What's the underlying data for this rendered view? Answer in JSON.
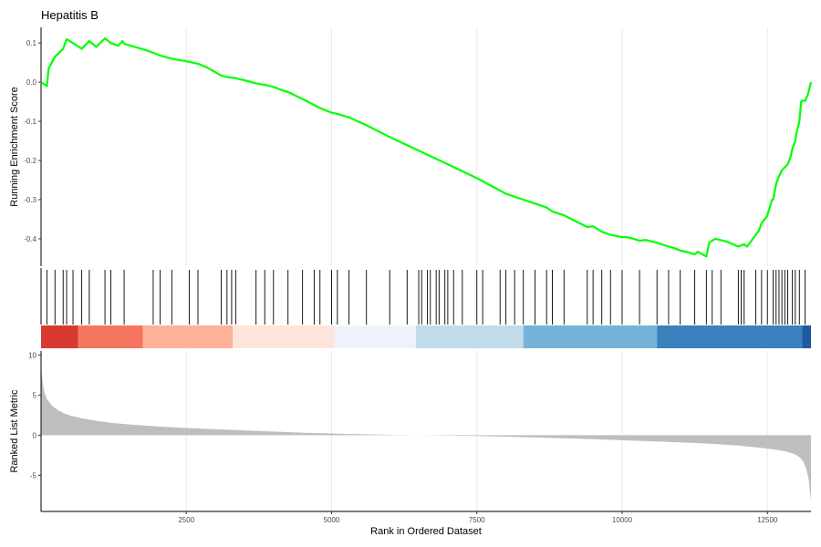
{
  "chart_data": {
    "type": "line",
    "title": "Hepatitis B",
    "xlabel": "Rank in Ordered Dataset",
    "xlim": [
      0,
      13250
    ],
    "x_ticks": [
      2500,
      5000,
      7500,
      10000,
      12500
    ],
    "panels": [
      {
        "name": "running-enrichment",
        "ylabel": "Running Enrichment Score",
        "ylim": [
          -0.47,
          0.14
        ],
        "y_ticks": [
          0.1,
          0.0,
          -0.1,
          -0.2,
          -0.3,
          -0.4
        ],
        "y_tick_labels": [
          "0.1",
          "0.0",
          "-0.1",
          "-0.2",
          "-0.3",
          "-0.4"
        ],
        "line_color": "#00ff00",
        "series": [
          {
            "x": [
              0,
              100,
              130,
              240,
              380,
              440,
              550,
              700,
              830,
              950,
              1100,
              1200,
              1330,
              1400,
              1430,
              1500,
              1800,
              1930,
              2050,
              2250,
              2550,
              2700,
              2850,
              3100,
              3200,
              3280,
              3350,
              3500,
              3700,
              3800,
              3850,
              4000,
              4100,
              4250,
              4500,
              4800,
              5000,
              5100,
              5300,
              5600,
              6000,
              6500,
              7000,
              7500,
              8000,
              8300,
              8500,
              8700,
              8800,
              9000,
              9200,
              9400,
              9500,
              9650,
              9800,
              10000,
              10050,
              10200,
              10300,
              10400,
              10600,
              10700,
              10800,
              10900,
              11000,
              11150,
              11250,
              11300,
              11450,
              11500,
              11600,
              11800,
              12000,
              12100,
              12150,
              12300,
              12350,
              12400,
              12480,
              12500,
              12580,
              12600,
              12650,
              12700,
              12750,
              12780,
              12850,
              12900,
              12930,
              12980,
              13000,
              13050,
              13080,
              13100,
              13150,
              13200,
              13250
            ],
            "y": [
              0.0,
              -0.01,
              0.035,
              0.065,
              0.085,
              0.11,
              0.1,
              0.085,
              0.105,
              0.09,
              0.112,
              0.1,
              0.093,
              0.105,
              0.098,
              0.095,
              0.082,
              0.075,
              0.068,
              0.06,
              0.052,
              0.047,
              0.038,
              0.017,
              0.013,
              0.012,
              0.01,
              0.005,
              -0.003,
              -0.006,
              -0.007,
              -0.012,
              -0.018,
              -0.025,
              -0.043,
              -0.066,
              -0.078,
              -0.081,
              -0.09,
              -0.11,
              -0.14,
              -0.175,
              -0.21,
              -0.245,
              -0.285,
              -0.3,
              -0.31,
              -0.32,
              -0.33,
              -0.34,
              -0.355,
              -0.37,
              -0.368,
              -0.382,
              -0.39,
              -0.396,
              -0.395,
              -0.4,
              -0.405,
              -0.403,
              -0.41,
              -0.415,
              -0.42,
              -0.424,
              -0.43,
              -0.435,
              -0.44,
              -0.433,
              -0.445,
              -0.41,
              -0.4,
              -0.407,
              -0.42,
              -0.414,
              -0.42,
              -0.39,
              -0.38,
              -0.36,
              -0.345,
              -0.34,
              -0.3,
              -0.3,
              -0.26,
              -0.24,
              -0.225,
              -0.22,
              -0.21,
              -0.19,
              -0.17,
              -0.15,
              -0.13,
              -0.1,
              -0.05,
              -0.047,
              -0.048,
              -0.03,
              0.0
            ]
          }
        ]
      },
      {
        "name": "gene-set-hits",
        "type": "rug",
        "hit_positions": [
          100,
          240,
          380,
          440,
          550,
          700,
          830,
          1100,
          1200,
          1430,
          1930,
          2050,
          2250,
          2550,
          2700,
          3100,
          3200,
          3280,
          3350,
          3700,
          3850,
          4000,
          4250,
          4500,
          4700,
          4800,
          5000,
          5100,
          5300,
          5600,
          6000,
          6300,
          6500,
          6550,
          6650,
          6700,
          6800,
          6850,
          6950,
          7000,
          7100,
          7250,
          7500,
          7600,
          7900,
          8000,
          8150,
          8300,
          8500,
          8700,
          8800,
          9000,
          9400,
          9500,
          9650,
          9800,
          10000,
          10300,
          10600,
          10800,
          11000,
          11250,
          11450,
          11550,
          11700,
          12000,
          12050,
          12100,
          12300,
          12400,
          12500,
          12600,
          12650,
          12700,
          12750,
          12800,
          12850,
          12930,
          12980,
          13050,
          13150
        ]
      },
      {
        "name": "rank-color-band",
        "type": "heatmap",
        "segments": [
          {
            "from": 0,
            "to": 640,
            "color": "#d83a32"
          },
          {
            "from": 640,
            "to": 1750,
            "color": "#f6755e"
          },
          {
            "from": 1750,
            "to": 3300,
            "color": "#fcb19a"
          },
          {
            "from": 3300,
            "to": 5050,
            "color": "#fde5db"
          },
          {
            "from": 5050,
            "to": 6450,
            "color": "#eef3fb"
          },
          {
            "from": 6450,
            "to": 8300,
            "color": "#c2dbe9"
          },
          {
            "from": 8300,
            "to": 10600,
            "color": "#75b4d8"
          },
          {
            "from": 10600,
            "to": 13100,
            "color": "#3a81bd"
          },
          {
            "from": 13100,
            "to": 13250,
            "color": "#1e5a9c"
          }
        ]
      },
      {
        "name": "ranked-list-metric",
        "type": "area",
        "ylabel": "Ranked List Metric",
        "ylim": [
          -9.5,
          10.5
        ],
        "y_ticks": [
          10,
          5,
          0,
          -5
        ],
        "y_tick_labels": [
          "10",
          "5",
          "0",
          "-5"
        ],
        "fill_color": "#bebebe",
        "series": [
          {
            "x": [
              0,
              5,
              20,
              50,
              100,
              200,
              300,
              400,
              500,
              700,
              900,
              1200,
              1500,
              2000,
              2500,
              3000,
              3500,
              4000,
              4500,
              5000,
              5500,
              6000,
              6500,
              7000,
              7500,
              8000,
              8500,
              9000,
              9500,
              10000,
              10500,
              11000,
              11500,
              12000,
              12300,
              12600,
              12800,
              12950,
              13050,
              13120,
              13170,
              13210,
              13235,
              13250
            ],
            "y": [
              10.0,
              8.0,
              7.2,
              5.5,
              4.5,
              3.6,
              3.1,
              2.7,
              2.45,
              2.1,
              1.85,
              1.55,
              1.35,
              1.1,
              0.9,
              0.75,
              0.6,
              0.45,
              0.32,
              0.22,
              0.12,
              0.05,
              0.0,
              -0.05,
              -0.1,
              -0.18,
              -0.28,
              -0.38,
              -0.5,
              -0.62,
              -0.75,
              -0.9,
              -1.05,
              -1.3,
              -1.5,
              -1.75,
              -2.0,
              -2.3,
              -2.7,
              -3.3,
              -4.2,
              -5.5,
              -7.2,
              -8.2
            ]
          }
        ]
      }
    ]
  }
}
